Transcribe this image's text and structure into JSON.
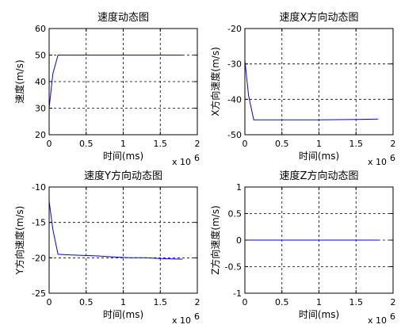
{
  "colors": {
    "series": "#0000ff",
    "axes": "#000000",
    "background": "#ffffff"
  },
  "chart_data": [
    {
      "type": "line",
      "title": "速度动态图",
      "xlabel": "时间(ms)",
      "ylabel": "速度(m/s)",
      "x_exponent_label": "x 10",
      "x_exponent_power": "6",
      "xlim": [
        0,
        2
      ],
      "ylim": [
        20,
        60
      ],
      "xticks": [
        0,
        0.5,
        1,
        1.5,
        2
      ],
      "xtick_labels": [
        "0",
        "0.5",
        "1",
        "1.5",
        "2"
      ],
      "yticks": [
        20,
        30,
        40,
        50,
        60
      ],
      "ytick_labels": [
        "20",
        "30",
        "40",
        "50",
        "60"
      ],
      "grid": true,
      "series": [
        {
          "x": [
            0,
            0.05,
            0.12,
            0.5,
            1.0,
            1.5,
            1.8
          ],
          "y": [
            30,
            43,
            50,
            50,
            50,
            50,
            50
          ]
        }
      ]
    },
    {
      "type": "line",
      "title": "速度X方向动态图",
      "xlabel": "时间(ms)",
      "ylabel": "X方向速度(m/s)",
      "x_exponent_label": "x 10",
      "x_exponent_power": "6",
      "xlim": [
        0,
        2
      ],
      "ylim": [
        -50,
        -20
      ],
      "xticks": [
        0,
        0.5,
        1,
        1.5,
        2
      ],
      "xtick_labels": [
        "0",
        "0.5",
        "1",
        "1.5",
        "2"
      ],
      "yticks": [
        -50,
        -40,
        -30,
        -20
      ],
      "ytick_labels": [
        "-50",
        "-40",
        "-30",
        "-20"
      ],
      "grid": true,
      "series": [
        {
          "x": [
            0,
            0.05,
            0.12,
            0.5,
            1.0,
            1.5,
            1.8
          ],
          "y": [
            -29,
            -39,
            -45.8,
            -45.8,
            -45.8,
            -45.7,
            -45.6
          ]
        }
      ]
    },
    {
      "type": "line",
      "title": "速度Y方向动态图",
      "xlabel": "时间(ms)",
      "ylabel": "Y方向速度(m/s)",
      "x_exponent_label": "x 10",
      "x_exponent_power": "6",
      "xlim": [
        0,
        2
      ],
      "ylim": [
        -25,
        -10
      ],
      "xticks": [
        0,
        0.5,
        1,
        1.5,
        2
      ],
      "xtick_labels": [
        "0",
        "0.5",
        "1",
        "1.5",
        "2"
      ],
      "yticks": [
        -25,
        -20,
        -15,
        -10
      ],
      "ytick_labels": [
        "-25",
        "-20",
        "-15",
        "-10"
      ],
      "grid": true,
      "series": [
        {
          "x": [
            0,
            0.05,
            0.12,
            0.3,
            0.6,
            0.9,
            1.1,
            1.3,
            1.5,
            1.8
          ],
          "y": [
            -12,
            -16,
            -19.5,
            -19.6,
            -19.7,
            -19.9,
            -20.0,
            -20.0,
            -20.1,
            -20.2
          ]
        }
      ]
    },
    {
      "type": "line",
      "title": "速度Z方向动态图",
      "xlabel": "时间(ms)",
      "ylabel": "Z方向速度(m/s)",
      "x_exponent_label": "x 10",
      "x_exponent_power": "6",
      "xlim": [
        0,
        2
      ],
      "ylim": [
        -1,
        1
      ],
      "xticks": [
        0,
        0.5,
        1,
        1.5,
        2
      ],
      "xtick_labels": [
        "0",
        "0.5",
        "1",
        "1.5",
        "2"
      ],
      "yticks": [
        -1,
        -0.5,
        0,
        0.5,
        1
      ],
      "ytick_labels": [
        "-1",
        "-0.5",
        "0",
        "0.5",
        "1"
      ],
      "grid": true,
      "series": [
        {
          "x": [
            0,
            0.5,
            1.0,
            1.5,
            1.8
          ],
          "y": [
            0,
            0,
            0,
            0,
            0
          ]
        }
      ]
    }
  ]
}
